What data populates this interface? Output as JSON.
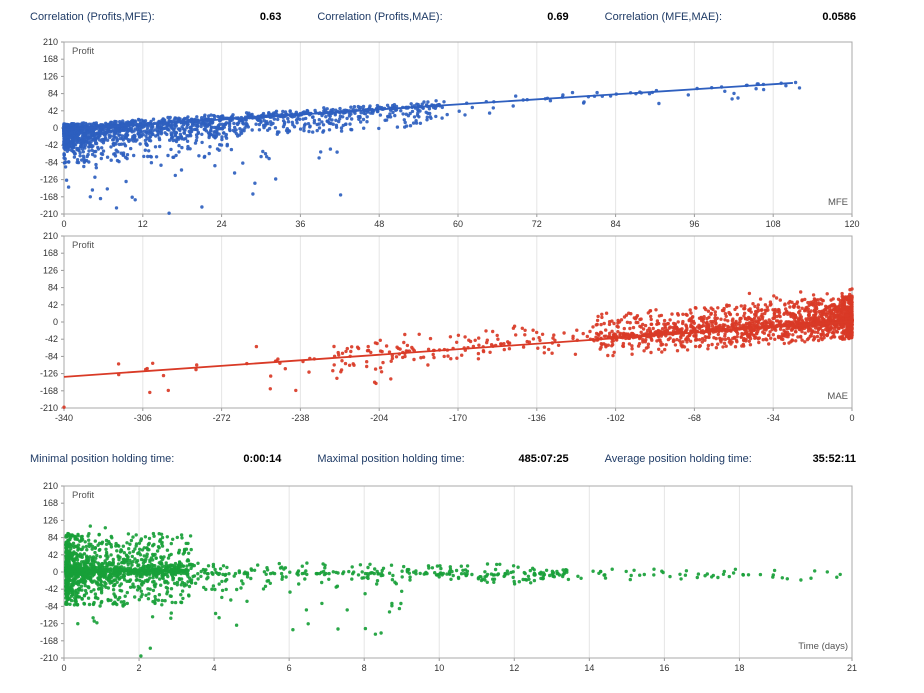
{
  "header_stats": {
    "row1": [
      {
        "label": "Correlation (Profits,MFE):",
        "value": "0.63"
      },
      {
        "label": "Correlation (Profits,MAE):",
        "value": "0.69"
      },
      {
        "label": "Correlation (MFE,MAE):",
        "value": "0.0586"
      }
    ],
    "row2": [
      {
        "label": "Minimal position holding time:",
        "value": "0:00:14"
      },
      {
        "label": "Maximal position holding time:",
        "value": "485:07:25"
      },
      {
        "label": "Average position holding time:",
        "value": "35:52:11"
      }
    ]
  },
  "colors": {
    "mfe_series": "#2e5fbf",
    "mae_series": "#d93a26",
    "time_series": "#18a038",
    "grid": "#e5e5e5",
    "plot_border": "#a8a8a8",
    "stat_label": "#1f3b66"
  },
  "chart_data": [
    {
      "id": "profit-vs-mfe",
      "type": "scatter",
      "title": "",
      "ylabel": "Profit",
      "xlabel": "MFE",
      "xlim": [
        0,
        120
      ],
      "ylim": [
        -210,
        210
      ],
      "x_ticks": [
        0,
        12,
        24,
        36,
        48,
        60,
        72,
        84,
        96,
        108,
        120
      ],
      "y_ticks": [
        210,
        168,
        126,
        84,
        42,
        0,
        -42,
        -84,
        -126,
        -168,
        -210
      ],
      "grid": "vertical",
      "legend": "none",
      "point_color": "#2e5fbf",
      "trend_line": {
        "x1": 0,
        "y1": -4,
        "x2": 111,
        "y2": 110,
        "color": "#2e5fbf"
      },
      "seed": 41,
      "point_clusters": [
        {
          "count": 1500,
          "x_min": 0,
          "x_max": 58,
          "x_pow": 2.6,
          "y_intercept": -2,
          "y_slope": 1.0,
          "p_up": 0.28,
          "up": 12,
          "up_pow": 2.0,
          "down": 48,
          "down_pow": 2.2
        },
        {
          "count": 320,
          "x_min": 0,
          "x_max": 26,
          "x_pow": 1.8,
          "y_intercept": -12,
          "y_slope": 0.9,
          "p_up": 0.1,
          "up": 10,
          "up_pow": 2.0,
          "down": 75,
          "down_pow": 1.6
        },
        {
          "count": 150,
          "x_min": 8,
          "x_max": 112,
          "x_pow": 1.5,
          "y_intercept": -2,
          "y_slope": 1.02,
          "p_up": 0.3,
          "up": 10,
          "up_pow": 2.0,
          "down": 38,
          "down_pow": 2.2
        },
        {
          "count": 48,
          "x_min": 0,
          "x_max": 44,
          "x_pow": 1.8,
          "y_intercept": -70,
          "y_slope": 0,
          "p_up": 0.25,
          "up": 25,
          "up_pow": 1.3,
          "down": 110,
          "down_pow": 1.4
        }
      ],
      "extra_points": [
        [
          112,
          98
        ],
        [
          8,
          -195
        ],
        [
          16,
          -208
        ],
        [
          21,
          -193
        ],
        [
          4,
          -168
        ]
      ]
    },
    {
      "id": "profit-vs-mae",
      "type": "scatter",
      "title": "",
      "ylabel": "Profit",
      "xlabel": "MAE",
      "xlim": [
        -340,
        0
      ],
      "ylim": [
        -210,
        210
      ],
      "x_ticks": [
        -340,
        -306,
        -272,
        -238,
        -204,
        -170,
        -136,
        -102,
        -68,
        -34,
        0
      ],
      "y_ticks": [
        210,
        168,
        126,
        84,
        42,
        0,
        -42,
        -84,
        -126,
        -168,
        -210
      ],
      "grid": "vertical",
      "legend": "none",
      "point_color": "#d93a26",
      "trend_line": {
        "x1": -340,
        "y1": -134,
        "x2": 0,
        "y2": 1,
        "color": "#d93a26"
      },
      "seed": 77,
      "point_clusters": [
        {
          "count": 1600,
          "x_min": 0,
          "x_max": -110,
          "x_pow": 2.4,
          "y_intercept": 4,
          "y_slope": 0.4,
          "p_up": 0.55,
          "up": 60,
          "up_pow": 2.2,
          "down": 45,
          "down_pow": 2.2
        },
        {
          "count": 60,
          "x_min": 0,
          "x_max": -45,
          "x_pow": 2.0,
          "y_intercept": 30,
          "y_slope": 0.3,
          "p_up": 0.6,
          "up": 60,
          "up_pow": 1.6,
          "down": 20,
          "down_pow": 1.5
        },
        {
          "count": 260,
          "x_min": -40,
          "x_max": -225,
          "x_pow": 1.3,
          "y_intercept": 10,
          "y_slope": 0.42,
          "p_up": 0.5,
          "up": 42,
          "up_pow": 1.8,
          "down": 42,
          "down_pow": 1.8
        },
        {
          "count": 20,
          "x_min": -150,
          "x_max": -330,
          "x_pow": 1.1,
          "y_intercept": -5,
          "y_slope": 0.35,
          "p_up": 0.4,
          "up": 35,
          "up_pow": 1.5,
          "down": 45,
          "down_pow": 1.5
        },
        {
          "count": 10,
          "x_min": -190,
          "x_max": -320,
          "x_pow": 1.0,
          "y_intercept": -120,
          "y_slope": 0,
          "p_up": 0.5,
          "up": 25,
          "up_pow": 1.5,
          "down": 40,
          "down_pow": 1.5
        }
      ],
      "extra_points": [
        [
          -340,
          -208
        ],
        [
          -303,
          -172
        ],
        [
          -295,
          -167
        ],
        [
          -251,
          -163
        ],
        [
          -240,
          -167
        ],
        [
          -206,
          -147
        ],
        [
          -199,
          -139
        ],
        [
          -232,
          -90
        ],
        [
          -257,
          -60
        ]
      ]
    },
    {
      "id": "profit-vs-holding-time",
      "type": "scatter",
      "title": "",
      "ylabel": "Profit",
      "xlabel": "Time (days)",
      "xlim": [
        0,
        21
      ],
      "ylim": [
        -210,
        210
      ],
      "x_ticks": [
        0,
        2,
        4,
        6,
        8,
        10,
        12,
        14,
        16,
        18,
        21
      ],
      "y_ticks": [
        210,
        168,
        126,
        84,
        42,
        0,
        -42,
        -84,
        -126,
        -168,
        -210
      ],
      "grid": "vertical",
      "legend": "none",
      "point_color": "#18a038",
      "trend_line": null,
      "seed": 93,
      "point_clusters": [
        {
          "count": 1300,
          "x_min": 0.05,
          "x_max": 3.4,
          "x_pow": 2.0,
          "y_intercept": 4,
          "y_slope": 0,
          "p_up": 0.5,
          "up": 90,
          "up_pow": 2.4,
          "down": 85,
          "down_pow": 2.4
        },
        {
          "count": 420,
          "x_min": 0.3,
          "x_max": 13.5,
          "x_pow": 1.5,
          "y_intercept": -4,
          "y_slope": 0,
          "p_up": 0.5,
          "up": 26,
          "up_pow": 2.0,
          "down": 26,
          "down_pow": 2.0
        },
        {
          "count": 80,
          "x_min": 9,
          "x_max": 20.7,
          "x_pow": 1.0,
          "y_intercept": -7,
          "y_slope": 0,
          "p_up": 0.5,
          "up": 14,
          "up_pow": 1.6,
          "down": 13,
          "down_pow": 1.6
        },
        {
          "count": 60,
          "x_min": 0.3,
          "x_max": 9,
          "x_pow": 1.6,
          "y_intercept": -35,
          "y_slope": 0,
          "p_up": 0.1,
          "up": 15,
          "up_pow": 1.5,
          "down": 105,
          "down_pow": 1.6
        }
      ],
      "extra_points": [
        [
          2.05,
          -205
        ],
        [
          2.3,
          -186
        ],
        [
          8.3,
          -152
        ],
        [
          8.45,
          -149
        ],
        [
          4.6,
          -130
        ],
        [
          6.1,
          -141
        ],
        [
          0.7,
          112
        ],
        [
          1.1,
          108
        ],
        [
          2.6,
          92
        ]
      ]
    }
  ]
}
